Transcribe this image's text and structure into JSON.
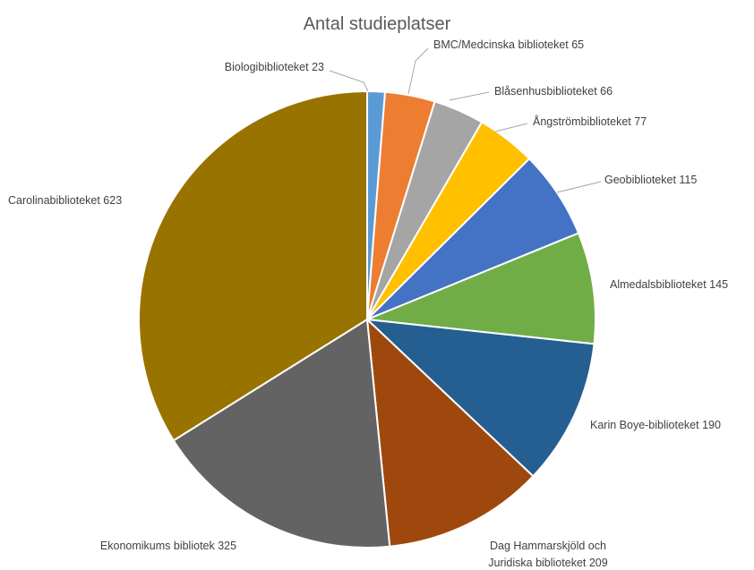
{
  "chart_data": {
    "type": "pie",
    "title": "Antal studieplatser",
    "slices": [
      {
        "label": "Biologibiblioteket",
        "value": 23,
        "label_text": "Biologibiblioteket 23",
        "color": "#5b9bd5"
      },
      {
        "label": "BMC/Medcinska biblioteket",
        "value": 65,
        "label_text": "BMC/Medcinska biblioteket 65",
        "color": "#ed7d31"
      },
      {
        "label": "Blåsenhusbiblioteket",
        "value": 66,
        "label_text": "Blåsenhusbiblioteket 66",
        "color": "#a5a5a5"
      },
      {
        "label": "Ångströmbiblioteket",
        "value": 77,
        "label_text": "Ångströmbiblioteket 77",
        "color": "#ffc000"
      },
      {
        "label": "Geobiblioteket",
        "value": 115,
        "label_text": "Geobiblioteket 115",
        "color": "#4472c4"
      },
      {
        "label": "Almedalsbiblioteket",
        "value": 145,
        "label_text": "Almedalsbiblioteket 145",
        "color": "#70ad47"
      },
      {
        "label": "Karin Boye-biblioteket",
        "value": 190,
        "label_text": "Karin Boye-biblioteket 190",
        "color": "#255e91"
      },
      {
        "label": "Dag Hammarskjöld och Juridiska biblioteket",
        "value": 209,
        "label_text": [
          "Dag Hammarskjöld och",
          "Juridiska biblioteket 209"
        ],
        "color": "#9e480e"
      },
      {
        "label": "Ekonomikums bibliotek",
        "value": 325,
        "label_text": "Ekonomikums bibliotek 325",
        "color": "#636363"
      },
      {
        "label": "Carolinabiblioteket",
        "value": 623,
        "label_text": "Carolinabiblioteket 623",
        "color": "#997300"
      }
    ],
    "start_angle": "12 o'clock",
    "direction": "clockwise",
    "legend": "none",
    "data_labels": "outside end with leader lines"
  }
}
